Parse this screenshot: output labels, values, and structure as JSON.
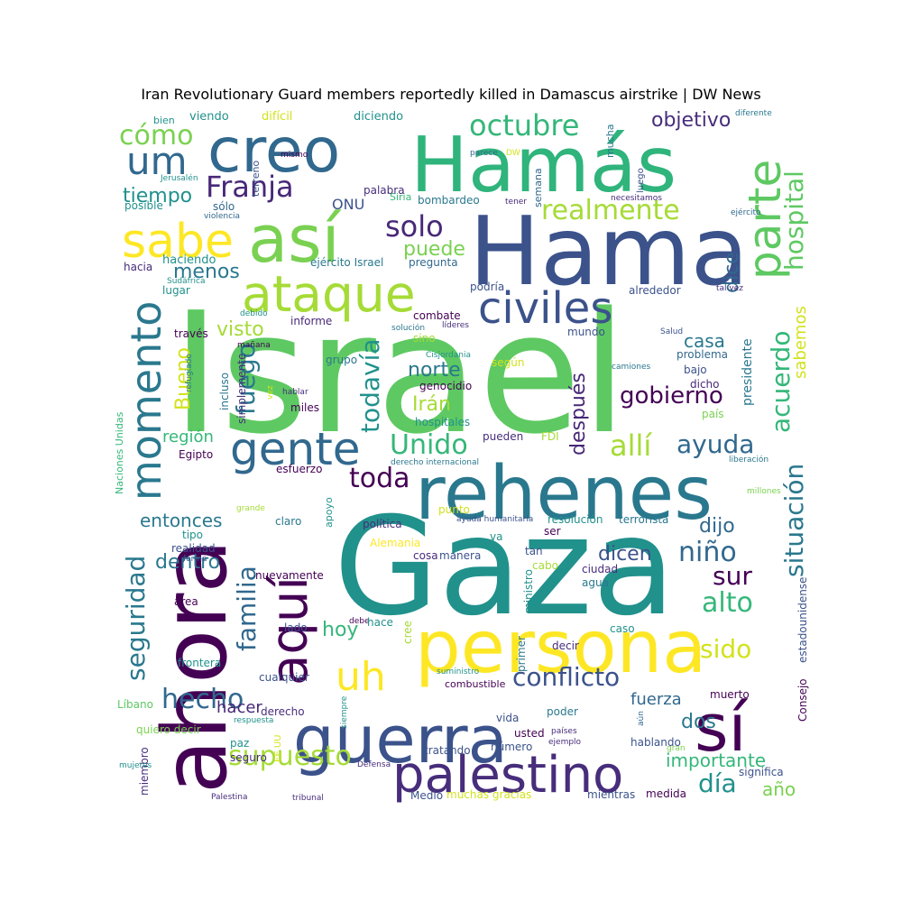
{
  "title": "Iran Revolutionary Guard members reportedly killed in Damascus airstrike | DW News",
  "words": [
    {
      "text": "Israel",
      "color": "#5ec962"
    },
    {
      "text": "Gaza",
      "color": "#21918c"
    },
    {
      "text": "Hamás",
      "color": "#2fb47c"
    },
    {
      "text": "Hama",
      "color": "#3b528b"
    },
    {
      "text": "ahora",
      "color": "#440154"
    },
    {
      "text": "rehenes",
      "color": "#2a788e"
    },
    {
      "text": "persona",
      "color": "#fde725"
    },
    {
      "text": "guerra",
      "color": "#3b528b"
    },
    {
      "text": "así",
      "color": "#7ad151"
    },
    {
      "text": "creo",
      "color": "#31688e"
    },
    {
      "text": "sí",
      "color": "#440154"
    },
    {
      "text": "aquí",
      "color": "#440154"
    },
    {
      "text": "palestino",
      "color": "#472d7b"
    },
    {
      "text": "ataque",
      "color": "#a5db36"
    },
    {
      "text": "sabe",
      "color": "#fde725"
    },
    {
      "text": "gente",
      "color": "#31688e"
    },
    {
      "text": "parte",
      "color": "#5ec962"
    },
    {
      "text": "civiles",
      "color": "#3b528b"
    },
    {
      "text": "momento",
      "color": "#2a788e"
    },
    {
      "text": "uh",
      "color": "#fde725"
    },
    {
      "text": "um",
      "color": "#31688e"
    },
    {
      "text": "octubre",
      "color": "#35b779"
    },
    {
      "text": "Franja",
      "color": "#482878"
    },
    {
      "text": "realmente",
      "color": "#a5db36"
    },
    {
      "text": "hospital",
      "color": "#5ec962"
    },
    {
      "text": "situación",
      "color": "#2a788e"
    },
    {
      "text": "acuerdo",
      "color": "#35b779"
    },
    {
      "text": "cómo",
      "color": "#7ad151"
    },
    {
      "text": "objetivo",
      "color": "#472d7b"
    },
    {
      "text": "tiempo",
      "color": "#21918c"
    },
    {
      "text": "solo",
      "color": "#482878"
    },
    {
      "text": "puede",
      "color": "#7ad151"
    },
    {
      "text": "menos",
      "color": "#2a788e"
    },
    {
      "text": "dice",
      "color": "#31688e"
    },
    {
      "text": "fuego",
      "color": "#2a788e"
    },
    {
      "text": "visto",
      "color": "#a5db36"
    },
    {
      "text": "todavía",
      "color": "#21918c"
    },
    {
      "text": "norte",
      "color": "#2a788e"
    },
    {
      "text": "Irán",
      "color": "#a5db36"
    },
    {
      "text": "Unido",
      "color": "#35b779"
    },
    {
      "text": "allí",
      "color": "#a5db36"
    },
    {
      "text": "ayuda",
      "color": "#31688e"
    },
    {
      "text": "gobierno",
      "color": "#440154"
    },
    {
      "text": "después",
      "color": "#482878"
    },
    {
      "text": "casa",
      "color": "#2a788e"
    },
    {
      "text": "Bueno",
      "color": "#d2e21b"
    },
    {
      "text": "seguridad",
      "color": "#2a788e"
    },
    {
      "text": "familia",
      "color": "#31688e"
    },
    {
      "text": "toda",
      "color": "#440154"
    },
    {
      "text": "dijo",
      "color": "#31688e"
    },
    {
      "text": "niño",
      "color": "#31688e"
    },
    {
      "text": "sur",
      "color": "#440154"
    },
    {
      "text": "alto",
      "color": "#35b779"
    },
    {
      "text": "entonces",
      "color": "#2a788e"
    },
    {
      "text": "dentro",
      "color": "#2a788e"
    },
    {
      "text": "dicen",
      "color": "#3b528b"
    },
    {
      "text": "conflicto",
      "color": "#3b528b"
    },
    {
      "text": "sido",
      "color": "#d2e21b"
    },
    {
      "text": "hecho",
      "color": "#31688e"
    },
    {
      "text": "hoy",
      "color": "#35b779"
    },
    {
      "text": "fuerza",
      "color": "#31688e"
    },
    {
      "text": "dos",
      "color": "#2a788e"
    },
    {
      "text": "importante",
      "color": "#35b779"
    },
    {
      "text": "supuesto",
      "color": "#a5db36"
    },
    {
      "text": "día",
      "color": "#21918c"
    },
    {
      "text": "año",
      "color": "#7ad151"
    },
    {
      "text": "hacer",
      "color": "#482878"
    },
    {
      "text": "región",
      "color": "#35b779"
    },
    {
      "text": "sabemos",
      "color": "#d2e21b"
    },
    {
      "text": "presidente",
      "color": "#2a788e"
    },
    {
      "text": "ONU",
      "color": "#3b528b"
    },
    {
      "text": "viendo",
      "color": "#21918c"
    },
    {
      "text": "difícil",
      "color": "#d2e21b"
    },
    {
      "text": "diciendo",
      "color": "#21918c"
    },
    {
      "text": "bien",
      "color": "#21918c"
    },
    {
      "text": "mucha",
      "color": "#2a788e"
    },
    {
      "text": "palabra",
      "color": "#472d7b"
    },
    {
      "text": "semana",
      "color": "#31688e"
    },
    {
      "text": "terreno",
      "color": "#3b528b"
    },
    {
      "text": "mismo",
      "color": "#440154"
    },
    {
      "text": "parece",
      "color": "#31688e"
    },
    {
      "text": "DW",
      "color": "#d2e21b"
    },
    {
      "text": "diferente",
      "color": "#2a788e"
    },
    {
      "text": "luego",
      "color": "#3b528b"
    },
    {
      "text": "posible",
      "color": "#21918c"
    },
    {
      "text": "sólo",
      "color": "#31688e"
    },
    {
      "text": "violencia",
      "color": "#31688e"
    },
    {
      "text": "Jerusalén",
      "color": "#21918c"
    },
    {
      "text": "Siria",
      "color": "#35b779"
    },
    {
      "text": "bombardeo",
      "color": "#2a788e"
    },
    {
      "text": "tener",
      "color": "#482878"
    },
    {
      "text": "necesitamos",
      "color": "#472d7b"
    },
    {
      "text": "ejército",
      "color": "#31688e"
    },
    {
      "text": "haciendo",
      "color": "#21918c"
    },
    {
      "text": "hacia",
      "color": "#472d7b"
    },
    {
      "text": "ejército Israel",
      "color": "#2a788e"
    },
    {
      "text": "pregunta",
      "color": "#31688e"
    },
    {
      "text": "Sudáfrica",
      "color": "#21918c"
    },
    {
      "text": "lugar",
      "color": "#21918c"
    },
    {
      "text": "podría",
      "color": "#3b528b"
    },
    {
      "text": "alrededor",
      "color": "#3b528b"
    },
    {
      "text": "tal vez",
      "color": "#472d7b"
    },
    {
      "text": "debido",
      "color": "#21918c"
    },
    {
      "text": "informe",
      "color": "#482878"
    },
    {
      "text": "combate",
      "color": "#440154"
    },
    {
      "text": "solución",
      "color": "#2a788e"
    },
    {
      "text": "líderes",
      "color": "#472d7b"
    },
    {
      "text": "sino",
      "color": "#a5db36"
    },
    {
      "text": "Salud",
      "color": "#3b528b"
    },
    {
      "text": "través",
      "color": "#440154"
    },
    {
      "text": "mañana",
      "color": "#440154"
    },
    {
      "text": "mundo",
      "color": "#3b528b"
    },
    {
      "text": "refugiado",
      "color": "#2a788e"
    },
    {
      "text": "incluso",
      "color": "#2a788e"
    },
    {
      "text": "simplemente",
      "color": "#472d7b"
    },
    {
      "text": "grupo",
      "color": "#2a788e"
    },
    {
      "text": "Cisjordania",
      "color": "#21918c"
    },
    {
      "text": "según",
      "color": "#d2e21b"
    },
    {
      "text": "problema",
      "color": "#31688e"
    },
    {
      "text": "camiones",
      "color": "#2a788e"
    },
    {
      "text": "bajo",
      "color": "#3b528b"
    },
    {
      "text": "genocidio",
      "color": "#440154"
    },
    {
      "text": "dicho",
      "color": "#482878"
    },
    {
      "text": "vez",
      "color": "#d2e21b"
    },
    {
      "text": "hablar",
      "color": "#472d7b"
    },
    {
      "text": "miles",
      "color": "#440154"
    },
    {
      "text": "hospitales",
      "color": "#21918c"
    },
    {
      "text": "país",
      "color": "#7ad151"
    },
    {
      "text": "Naciones Unidas",
      "color": "#35b779"
    },
    {
      "text": "Egipto",
      "color": "#440154"
    },
    {
      "text": "pueden",
      "color": "#472d7b"
    },
    {
      "text": "FDI",
      "color": "#a5db36"
    },
    {
      "text": "liberación",
      "color": "#2a788e"
    },
    {
      "text": "esfuerzo",
      "color": "#440154"
    },
    {
      "text": "derecho internacional",
      "color": "#2a788e"
    },
    {
      "text": "apoyo",
      "color": "#21918c"
    },
    {
      "text": "punto",
      "color": "#d2e21b"
    },
    {
      "text": "millones",
      "color": "#7ad151"
    },
    {
      "text": "grande",
      "color": "#a5db36"
    },
    {
      "text": "claro",
      "color": "#2a788e"
    },
    {
      "text": "ayuda humanitaria",
      "color": "#3b528b"
    },
    {
      "text": "resolución",
      "color": "#21918c"
    },
    {
      "text": "terrorista",
      "color": "#2a788e"
    },
    {
      "text": "tipo",
      "color": "#21918c"
    },
    {
      "text": "política",
      "color": "#472d7b"
    },
    {
      "text": "ser",
      "color": "#440154"
    },
    {
      "text": "realidad",
      "color": "#3b528b"
    },
    {
      "text": "Alemania",
      "color": "#fde725"
    },
    {
      "text": "va",
      "color": "#21918c"
    },
    {
      "text": "forma",
      "color": "#3b528b"
    },
    {
      "text": "cosa",
      "color": "#472d7b"
    },
    {
      "text": "manera",
      "color": "#3b528b"
    },
    {
      "text": "tan",
      "color": "#3b528b"
    },
    {
      "text": "ciudad",
      "color": "#472d7b"
    },
    {
      "text": "nuevamente",
      "color": "#440154"
    },
    {
      "text": "cabo",
      "color": "#a5db36"
    },
    {
      "text": "ministro",
      "color": "#21918c"
    },
    {
      "text": "agua",
      "color": "#2a788e"
    },
    {
      "text": "Consejo",
      "color": "#440154"
    },
    {
      "text": "estadounidense",
      "color": "#3b528b"
    },
    {
      "text": "área",
      "color": "#440154"
    },
    {
      "text": "lado",
      "color": "#3b528b"
    },
    {
      "text": "debe",
      "color": "#440154"
    },
    {
      "text": "hace",
      "color": "#21918c"
    },
    {
      "text": "cree",
      "color": "#a5db36"
    },
    {
      "text": "caso",
      "color": "#21918c"
    },
    {
      "text": "frontera",
      "color": "#21918c"
    },
    {
      "text": "primer",
      "color": "#2a788e"
    },
    {
      "text": "decir",
      "color": "#472d7b"
    },
    {
      "text": "cualquier",
      "color": "#3b528b"
    },
    {
      "text": "suministro",
      "color": "#21918c"
    },
    {
      "text": "Líbano",
      "color": "#5ec962"
    },
    {
      "text": "combustible",
      "color": "#440154"
    },
    {
      "text": "muerto",
      "color": "#440154"
    },
    {
      "text": "derecho",
      "color": "#472d7b"
    },
    {
      "text": "siempre",
      "color": "#21918c"
    },
    {
      "text": "respuesta",
      "color": "#21918c"
    },
    {
      "text": "vida",
      "color": "#3b528b"
    },
    {
      "text": "poder",
      "color": "#2a788e"
    },
    {
      "text": "aún",
      "color": "#31688e"
    },
    {
      "text": "quiero decir",
      "color": "#7ad151"
    },
    {
      "text": "usted",
      "color": "#440154"
    },
    {
      "text": "países",
      "color": "#472d7b"
    },
    {
      "text": "paz",
      "color": "#21918c"
    },
    {
      "text": "EE UU",
      "color": "#d2e21b"
    },
    {
      "text": "número",
      "color": "#3b528b"
    },
    {
      "text": "ejemplo",
      "color": "#472d7b"
    },
    {
      "text": "hablando",
      "color": "#3b528b"
    },
    {
      "text": "gran",
      "color": "#7ad151"
    },
    {
      "text": "miembro",
      "color": "#472d7b"
    },
    {
      "text": "seguro",
      "color": "#472d7b"
    },
    {
      "text": "tratando",
      "color": "#3b528b"
    },
    {
      "text": "significa",
      "color": "#3b528b"
    },
    {
      "text": "mujeres",
      "color": "#21918c"
    },
    {
      "text": "Defensa",
      "color": "#472d7b"
    },
    {
      "text": "Medio",
      "color": "#3b528b"
    },
    {
      "text": "muchas gracias",
      "color": "#d2e21b"
    },
    {
      "text": "mientras",
      "color": "#3b528b"
    },
    {
      "text": "medida",
      "color": "#440154"
    },
    {
      "text": "Palestina",
      "color": "#472d7b"
    },
    {
      "text": "tribunal",
      "color": "#472d7b"
    }
  ]
}
